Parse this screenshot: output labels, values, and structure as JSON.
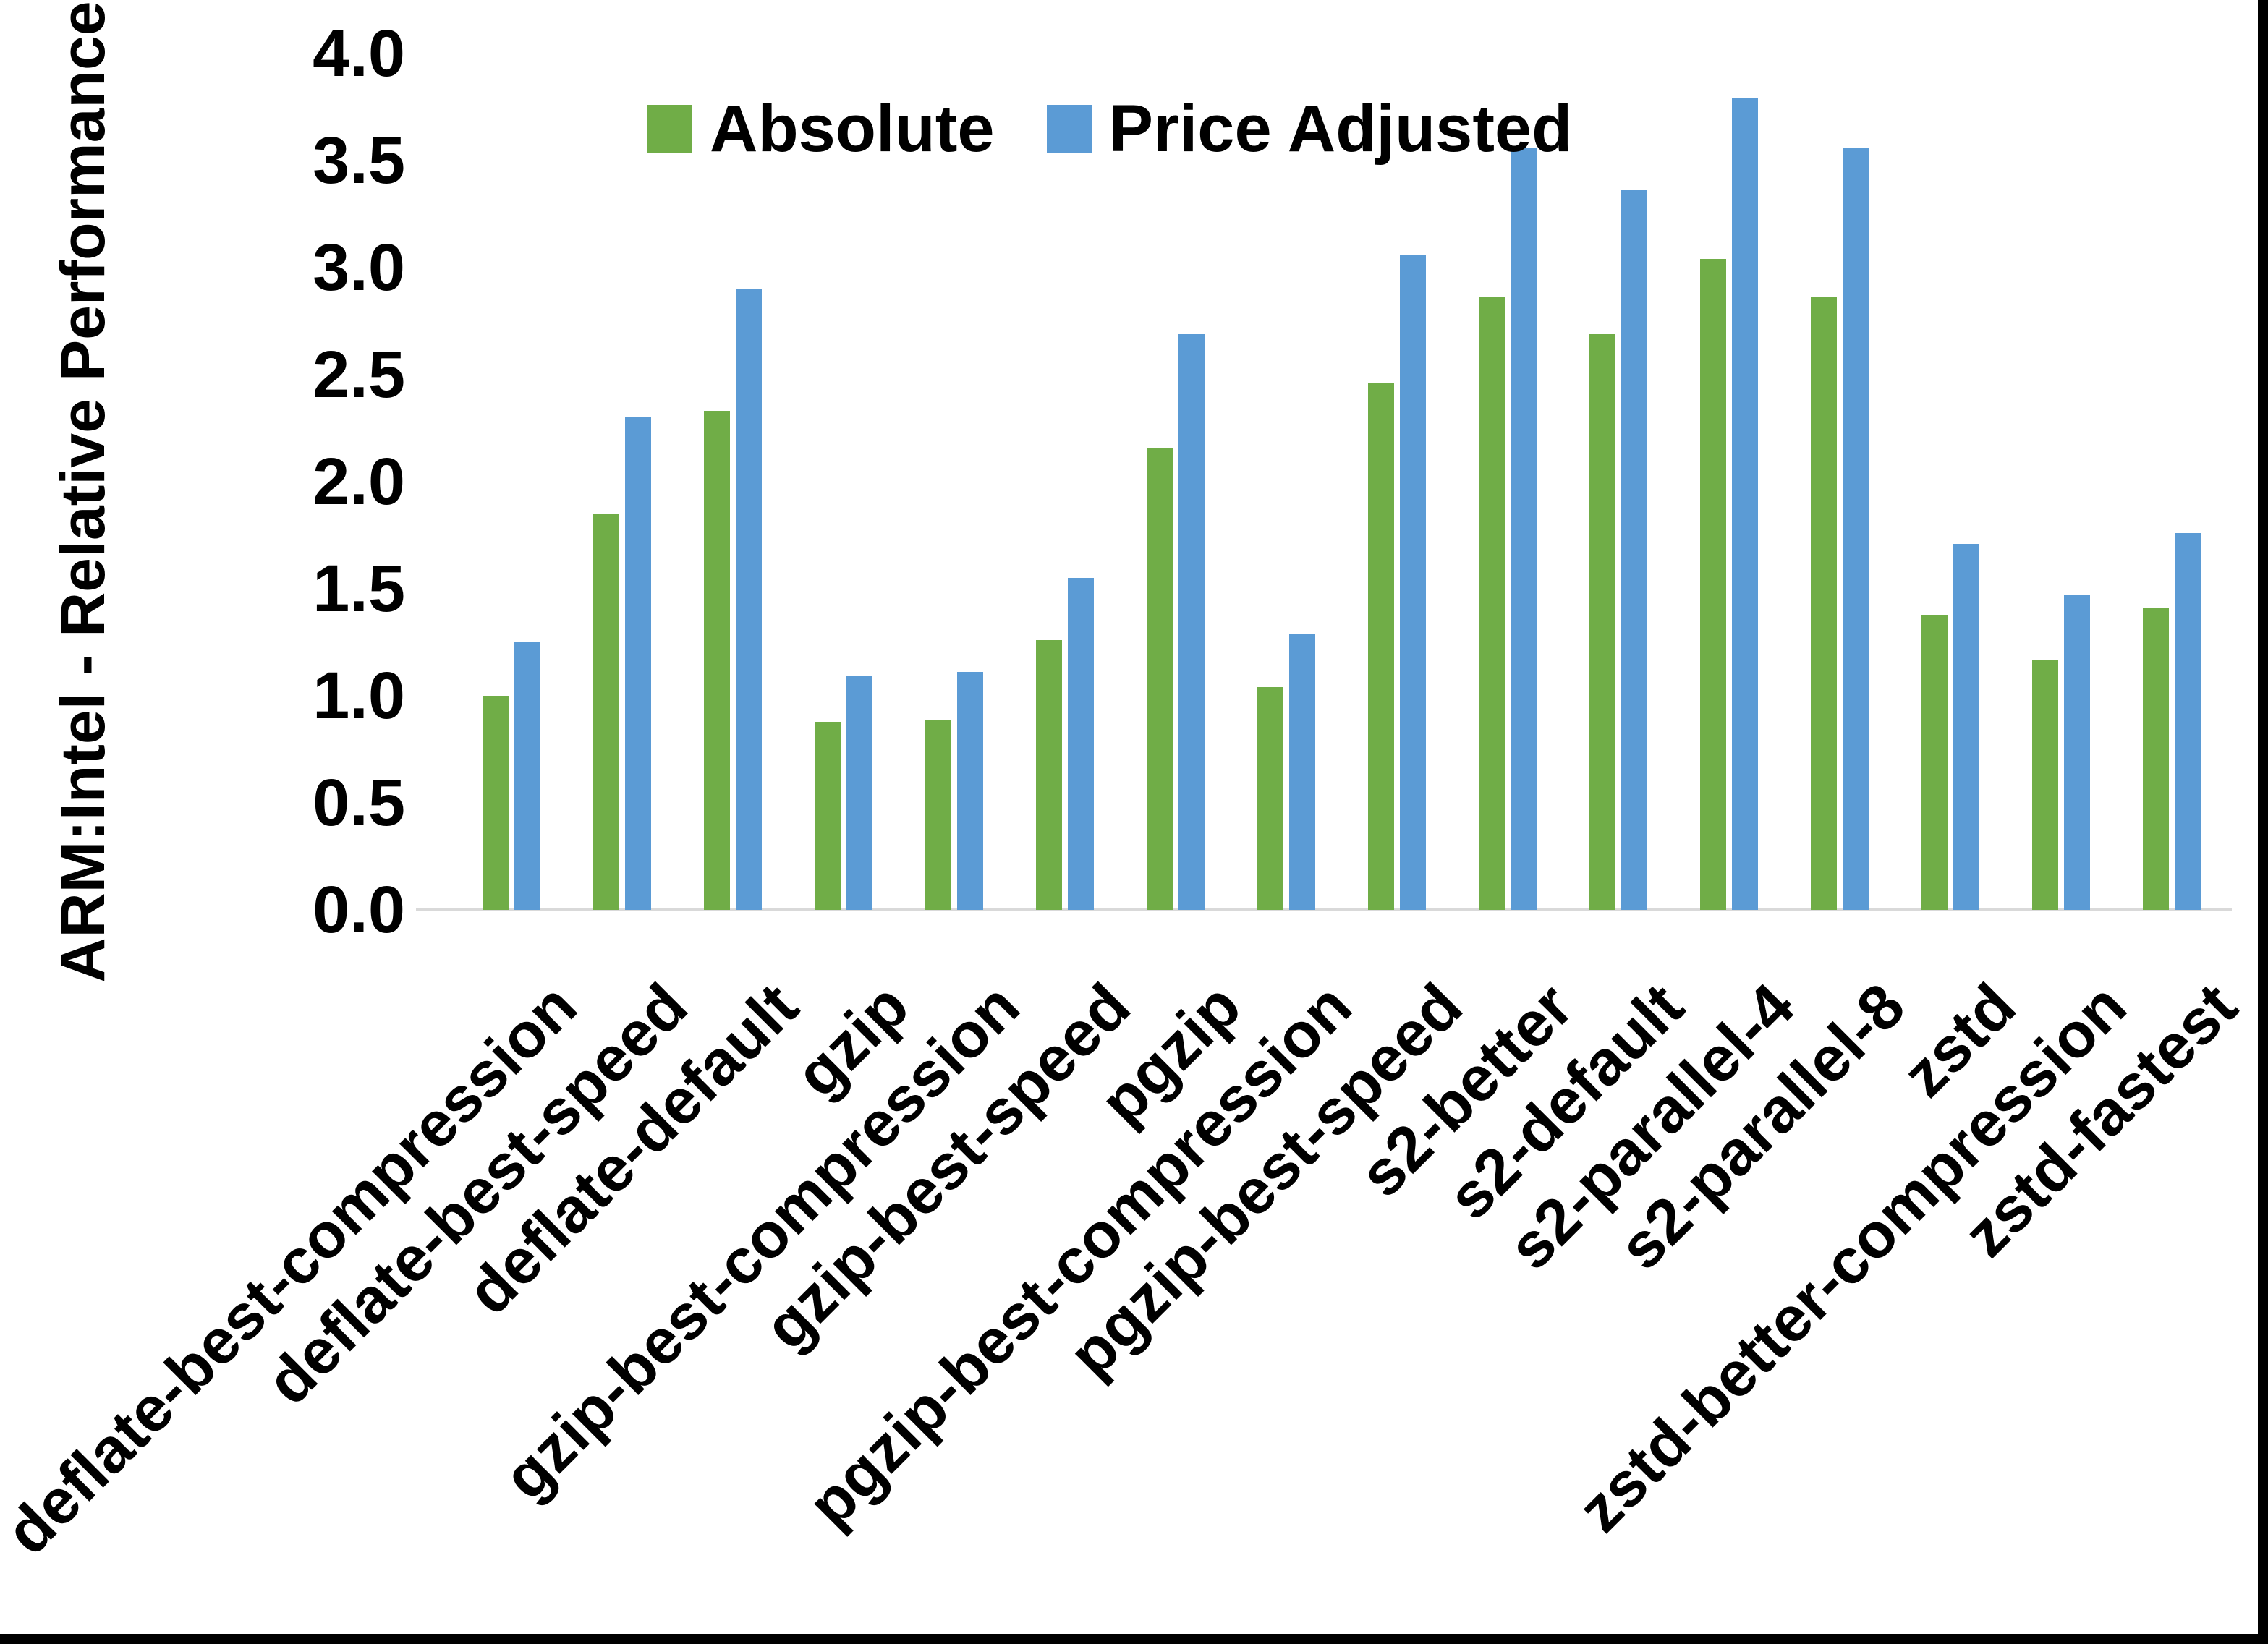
{
  "chart_data": {
    "type": "bar",
    "title": "",
    "xlabel": "",
    "ylabel": "ARM:Intel - Relative Performance",
    "ylim": [
      0.0,
      4.0
    ],
    "ytick_step": 0.5,
    "yticks": [
      "0.0",
      "0.5",
      "1.0",
      "1.5",
      "2.0",
      "2.5",
      "3.0",
      "3.5",
      "4.0"
    ],
    "grid": false,
    "legend_position": "top-center",
    "background_color": "#FFFFFF",
    "axis_line_color": "#D9D9D9",
    "categories": [
      "deflate-best-compression",
      "deflate-best-speed",
      "deflate-default",
      "gzip",
      "gzip-best-compression",
      "gzip-best-speed",
      "pgzip",
      "pgzip-best-compression",
      "pgzip-best-speed",
      "s2-better",
      "s2-default",
      "s2-parallel-4",
      "s2-parallel-8",
      "zstd",
      "zstd-better-compression",
      "zstd-fastest"
    ],
    "series": [
      {
        "name": "Absolute",
        "color": "#70AD47",
        "values": [
          1.0,
          1.85,
          2.33,
          0.88,
          0.89,
          1.26,
          2.16,
          1.04,
          2.46,
          2.86,
          2.69,
          3.04,
          2.86,
          1.38,
          1.17,
          1.41
        ]
      },
      {
        "name": "Price Adjusted",
        "color": "#5B9BD5",
        "values": [
          1.25,
          2.3,
          2.9,
          1.09,
          1.11,
          1.55,
          2.69,
          1.29,
          3.06,
          3.56,
          3.36,
          3.79,
          3.56,
          1.71,
          1.47,
          1.76
        ]
      }
    ]
  }
}
